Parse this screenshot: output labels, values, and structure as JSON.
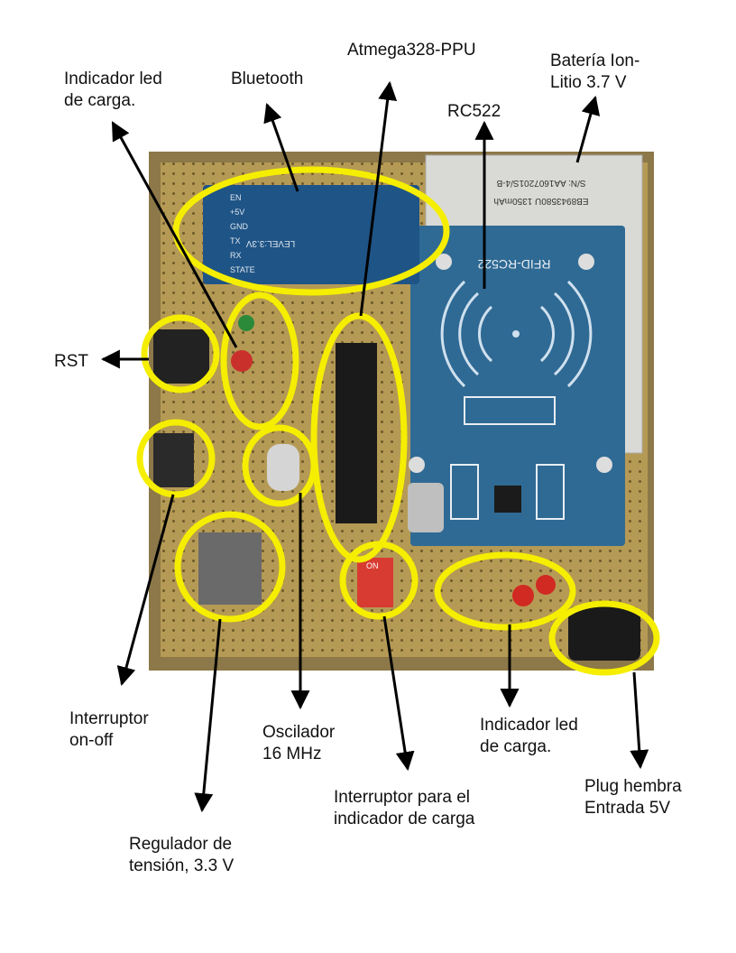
{
  "labels": {
    "atmega": "Atmega328-PPU",
    "bateria": "Batería Ion-\nLitio 3.7 V",
    "led_carga_top": "Indicador led\nde carga.",
    "bluetooth": "Bluetooth",
    "rc522": "RC522",
    "rst": "RST",
    "interruptor": "Interruptor\non-off",
    "oscilador": "Oscilador\n16 MHz",
    "led_carga_bottom": "Indicador led\nde carga.",
    "plug": "Plug hembra\nEntrada 5V",
    "interruptor_carga": "Interruptor para el\nindicador de carga",
    "regulador": "Regulador de\ntensión, 3.3 V"
  },
  "board": {
    "bt_module_text": [
      "EN",
      "+5V",
      "GND",
      "TX",
      "RX",
      "STATE"
    ],
    "bt_level_text": "LEVEL:3.3V",
    "rfid_text": "RFID-RC522",
    "battery_text": [
      "S/N: AA1607201S/4-B",
      "EB8943580U 1350mAh"
    ],
    "dip_text": "ON"
  },
  "colors": {
    "highlight": "#f5ee00",
    "arrow": "#000000",
    "board": "#b59a55",
    "rfid": "#2f6a94"
  }
}
